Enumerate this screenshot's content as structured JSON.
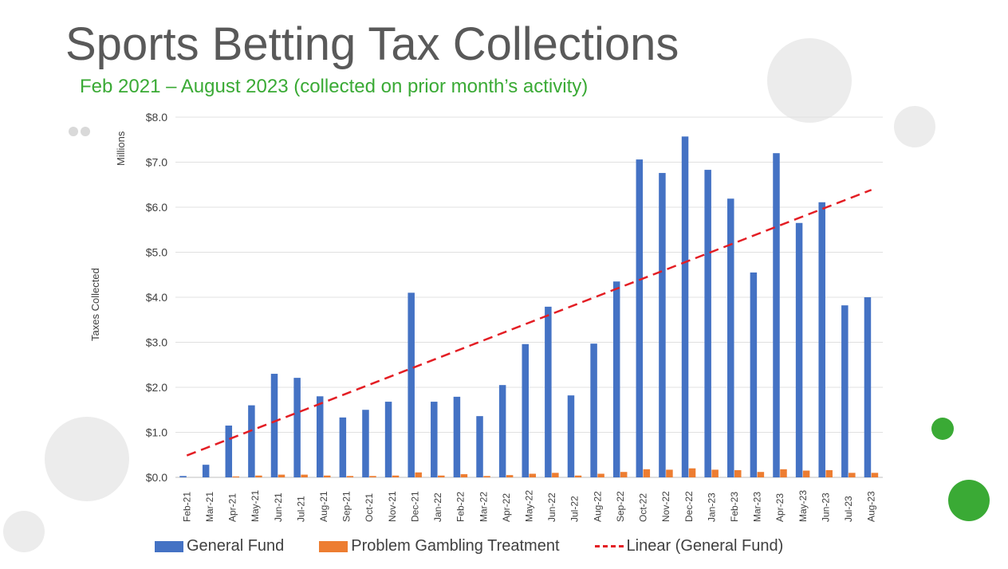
{
  "header": {
    "title": "Sports Betting Tax Collections",
    "subtitle": "Feb 2021 – August 2023 (collected on prior month’s activity)"
  },
  "colors": {
    "general_fund": "#4472c4",
    "problem_gambling": "#ed7d31",
    "trend": "#e31e24",
    "subtitle": "#3aaa35"
  },
  "chart_data": {
    "type": "bar",
    "ylabel": "Taxes Collected",
    "yunit_label": "Millions",
    "ylim": [
      0,
      8
    ],
    "yticks": [
      "$0.0",
      "$1.0",
      "$2.0",
      "$3.0",
      "$4.0",
      "$5.0",
      "$6.0",
      "$7.0",
      "$8.0"
    ],
    "grid": true,
    "legend_placement": "bottom",
    "categories": [
      "Feb-21",
      "Mar-21",
      "Apr-21",
      "May-21",
      "Jun-21",
      "Jul-21",
      "Aug-21",
      "Sep-21",
      "Oct-21",
      "Nov-21",
      "Dec-21",
      "Jan-22",
      "Feb-22",
      "Mar-22",
      "Apr-22",
      "May-22",
      "Jun-22",
      "Jul-22",
      "Aug-22",
      "Sep-22",
      "Oct-22",
      "Nov-22",
      "Dec-22",
      "Jan-23",
      "Feb-23",
      "Mar-23",
      "Apr-23",
      "May-23",
      "Jun-23",
      "Jul-23",
      "Aug-23"
    ],
    "series": [
      {
        "name": "General Fund",
        "values": [
          0.03,
          0.28,
          1.15,
          1.6,
          2.3,
          2.21,
          1.8,
          1.33,
          1.5,
          1.68,
          4.1,
          1.68,
          1.79,
          1.36,
          2.05,
          2.96,
          3.79,
          1.82,
          2.97,
          4.35,
          7.06,
          6.76,
          7.57,
          6.83,
          6.19,
          4.55,
          7.2,
          5.65,
          6.11,
          3.82,
          4.0
        ]
      },
      {
        "name": "Problem Gambling Treatment",
        "values": [
          0,
          0,
          0.02,
          0.04,
          0.06,
          0.06,
          0.04,
          0.03,
          0.03,
          0.04,
          0.11,
          0.04,
          0.07,
          0.03,
          0.05,
          0.08,
          0.1,
          0.04,
          0.08,
          0.12,
          0.18,
          0.17,
          0.2,
          0.17,
          0.16,
          0.12,
          0.18,
          0.15,
          0.16,
          0.1,
          0.1
        ]
      }
    ],
    "trendline": {
      "name": "Linear (General Fund)",
      "type": "linear",
      "of": "General Fund"
    }
  }
}
